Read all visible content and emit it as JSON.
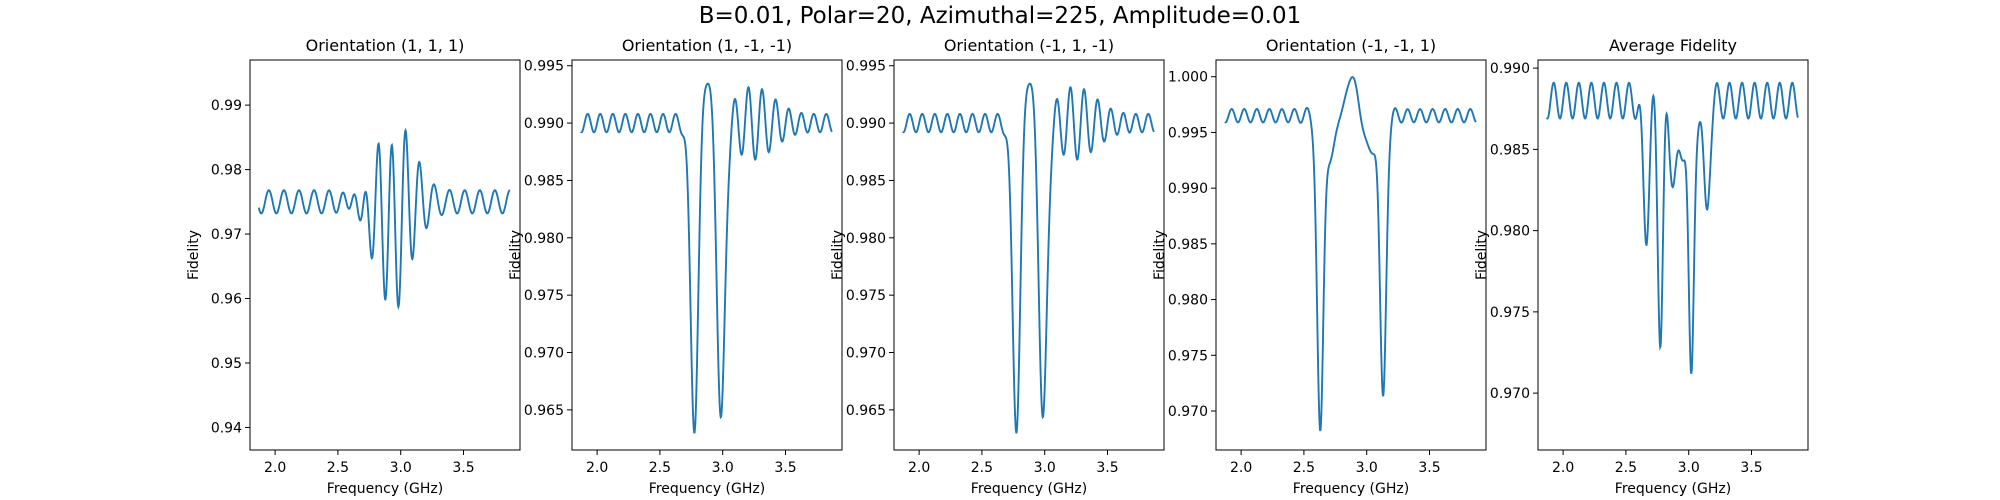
{
  "figure": {
    "suptitle": "B=0.01, Polar=20, Azimuthal=225, Amplitude=0.01",
    "line_color": "#1f77b4"
  },
  "chart_data": [
    {
      "type": "line",
      "title": "Orientation (1, 1, 1)",
      "xlabel": "Frequency (GHz)",
      "ylabel": "Fidelity",
      "xlim": [
        1.8,
        3.95
      ],
      "ylim": [
        0.9365,
        0.997
      ],
      "xticks": [
        2.0,
        2.5,
        3.0,
        3.5
      ],
      "xtick_labels": [
        "2.0",
        "2.5",
        "3.0",
        "3.5"
      ],
      "yticks": [
        0.94,
        0.95,
        0.96,
        0.97,
        0.98,
        0.99
      ],
      "ytick_labels": [
        "0.94",
        "0.95",
        "0.96",
        "0.97",
        "0.98",
        "0.99"
      ],
      "grid": false,
      "x_range": [
        1.87,
        3.87
      ],
      "series": [
        {
          "baseline": 0.975,
          "ripple_amp": 0.0018,
          "ripple_period": 0.12,
          "dips": [
            {
              "center": 2.74,
              "depth": 0.003,
              "width": 0.05,
              "osc_amp": 0.004,
              "osc_period": 0.11
            },
            {
              "center": 2.93,
              "depth": 0.005,
              "width": 0.07,
              "osc_amp": 0.013,
              "osc_period": 0.11
            }
          ]
        }
      ]
    },
    {
      "type": "line",
      "title": "Orientation (1, -1, -1)",
      "xlabel": "Frequency (GHz)",
      "ylabel": "Fidelity",
      "xlim": [
        1.8,
        3.95
      ],
      "ylim": [
        0.9615,
        0.9955
      ],
      "xticks": [
        2.0,
        2.5,
        3.0,
        3.5
      ],
      "xtick_labels": [
        "2.0",
        "2.5",
        "3.0",
        "3.5"
      ],
      "yticks": [
        0.965,
        0.97,
        0.975,
        0.98,
        0.985,
        0.99,
        0.995
      ],
      "ytick_labels": [
        "0.965",
        "0.970",
        "0.975",
        "0.980",
        "0.985",
        "0.990",
        "0.995"
      ],
      "grid": false,
      "x_range": [
        1.87,
        3.87
      ],
      "series": [
        {
          "baseline": 0.99,
          "ripple_amp": 0.0008,
          "ripple_period": 0.1,
          "dips": [
            {
              "center": 2.775,
              "depth": 0.027,
              "width": 0.045,
              "osc_amp": 0,
              "osc_period": 0.1
            },
            {
              "center": 2.985,
              "depth": 0.027,
              "width": 0.045,
              "osc_amp": 0,
              "osc_period": 0.1
            },
            {
              "center": 2.88,
              "depth": -0.004,
              "width": 0.08,
              "osc_amp": 0,
              "osc_period": 0.1
            },
            {
              "center": 3.2,
              "depth": 0.0,
              "width": 0.08,
              "osc_amp": 0.003,
              "osc_period": 0.11
            }
          ]
        }
      ]
    },
    {
      "type": "line",
      "title": "Orientation (-1, 1, -1)",
      "xlabel": "Frequency (GHz)",
      "ylabel": "Fidelity",
      "xlim": [
        1.8,
        3.95
      ],
      "ylim": [
        0.9615,
        0.9955
      ],
      "xticks": [
        2.0,
        2.5,
        3.0,
        3.5
      ],
      "xtick_labels": [
        "2.0",
        "2.5",
        "3.0",
        "3.5"
      ],
      "yticks": [
        0.965,
        0.97,
        0.975,
        0.98,
        0.985,
        0.99,
        0.995
      ],
      "ytick_labels": [
        "0.965",
        "0.970",
        "0.975",
        "0.980",
        "0.985",
        "0.990",
        "0.995"
      ],
      "grid": false,
      "x_range": [
        1.87,
        3.87
      ],
      "series": [
        {
          "baseline": 0.99,
          "ripple_amp": 0.0008,
          "ripple_period": 0.1,
          "dips": [
            {
              "center": 2.775,
              "depth": 0.027,
              "width": 0.045,
              "osc_amp": 0,
              "osc_period": 0.1
            },
            {
              "center": 2.985,
              "depth": 0.027,
              "width": 0.045,
              "osc_amp": 0,
              "osc_period": 0.1
            },
            {
              "center": 2.88,
              "depth": -0.004,
              "width": 0.08,
              "osc_amp": 0,
              "osc_period": 0.1
            },
            {
              "center": 3.2,
              "depth": 0.0,
              "width": 0.08,
              "osc_amp": 0.003,
              "osc_period": 0.11
            }
          ]
        }
      ]
    },
    {
      "type": "line",
      "title": "Orientation (-1, -1, 1)",
      "xlabel": "Frequency (GHz)",
      "ylabel": "Fidelity",
      "xlim": [
        1.8,
        3.95
      ],
      "ylim": [
        0.9665,
        1.0015
      ],
      "xticks": [
        2.0,
        2.5,
        3.0,
        3.5
      ],
      "xtick_labels": [
        "2.0",
        "2.5",
        "3.0",
        "3.5"
      ],
      "yticks": [
        0.97,
        0.975,
        0.98,
        0.985,
        0.99,
        0.995,
        1.0
      ],
      "ytick_labels": [
        "0.970",
        "0.975",
        "0.980",
        "0.985",
        "0.990",
        "0.995",
        "1.000"
      ],
      "grid": false,
      "x_range": [
        1.87,
        3.87
      ],
      "series": [
        {
          "baseline": 0.9965,
          "ripple_amp": 0.0006,
          "ripple_period": 0.1,
          "dips": [
            {
              "center": 2.63,
              "depth": 0.029,
              "width": 0.035,
              "osc_amp": 0,
              "osc_period": 0.1
            },
            {
              "center": 3.13,
              "depth": 0.026,
              "width": 0.035,
              "osc_amp": 0,
              "osc_period": 0.1
            },
            {
              "center": 2.88,
              "depth": -0.003,
              "width": 0.08,
              "osc_amp": 0.001,
              "osc_period": 0.12
            },
            {
              "center": 2.72,
              "depth": 0.004,
              "width": 0.05,
              "osc_amp": 0,
              "osc_period": 0.1
            },
            {
              "center": 3.02,
              "depth": 0.004,
              "width": 0.05,
              "osc_amp": 0,
              "osc_period": 0.1
            }
          ]
        }
      ]
    },
    {
      "type": "line",
      "title": "Average Fidelity",
      "xlabel": "Frequency (GHz)",
      "ylabel": "Fidelity",
      "xlim": [
        1.8,
        3.95
      ],
      "ylim": [
        0.9665,
        0.9905
      ],
      "xticks": [
        2.0,
        2.5,
        3.0,
        3.5
      ],
      "xtick_labels": [
        "2.0",
        "2.5",
        "3.0",
        "3.5"
      ],
      "yticks": [
        0.97,
        0.975,
        0.98,
        0.985,
        0.99
      ],
      "ytick_labels": [
        "0.970",
        "0.975",
        "0.980",
        "0.985",
        "0.990"
      ],
      "grid": false,
      "x_range": [
        1.87,
        3.87
      ],
      "series": [
        {
          "baseline": 0.988,
          "ripple_amp": 0.0011,
          "ripple_period": 0.1,
          "dips": [
            {
              "center": 2.66,
              "depth": 0.008,
              "width": 0.035,
              "osc_amp": 0,
              "osc_period": 0.1
            },
            {
              "center": 2.775,
              "depth": 0.014,
              "width": 0.03,
              "osc_amp": 0,
              "osc_period": 0.1
            },
            {
              "center": 2.9,
              "depth": 0.005,
              "width": 0.06,
              "osc_amp": 0.0012,
              "osc_period": 0.1
            },
            {
              "center": 3.02,
              "depth": 0.018,
              "width": 0.03,
              "osc_amp": 0,
              "osc_period": 0.1
            },
            {
              "center": 3.14,
              "depth": 0.007,
              "width": 0.035,
              "osc_amp": 0,
              "osc_period": 0.1
            }
          ]
        }
      ]
    }
  ]
}
